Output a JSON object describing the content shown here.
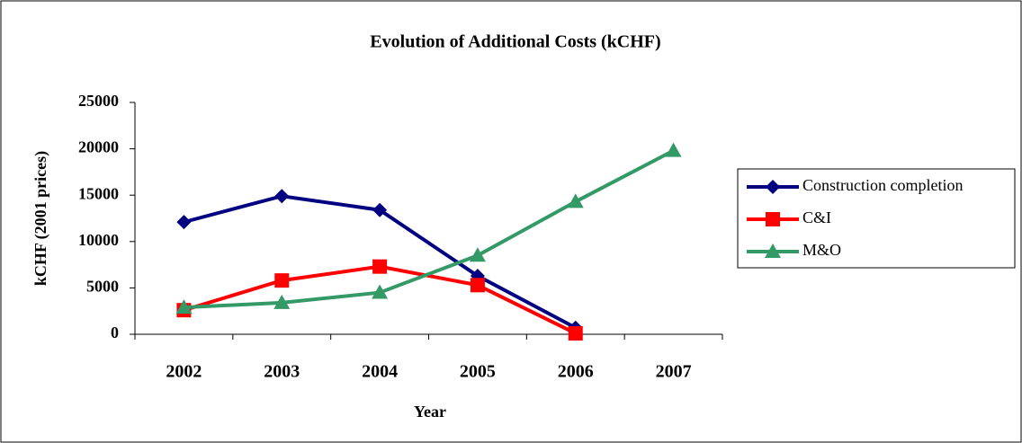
{
  "chart_data": {
    "type": "line",
    "title": "Evolution of Additional Costs (kCHF)",
    "x_label": "Year",
    "y_label": "kCHF (2001 prices)",
    "categories": [
      "2002",
      "2003",
      "2004",
      "2005",
      "2006",
      "2007"
    ],
    "series": [
      {
        "name": "Construction completion",
        "color": "#000080",
        "marker": "diamond",
        "values": [
          12100,
          14900,
          13400,
          6300,
          700,
          null
        ]
      },
      {
        "name": "C&I",
        "color": "#ff0000",
        "marker": "square",
        "values": [
          2600,
          5800,
          7300,
          5300,
          100,
          null
        ]
      },
      {
        "name": "M&O",
        "color": "#339966",
        "marker": "triangle",
        "values": [
          2900,
          3400,
          4500,
          8500,
          14300,
          19800
        ]
      }
    ],
    "ylim": [
      0,
      25000
    ],
    "yticks": [
      0,
      5000,
      10000,
      15000,
      20000,
      25000
    ],
    "grid": false,
    "legend": "right"
  }
}
